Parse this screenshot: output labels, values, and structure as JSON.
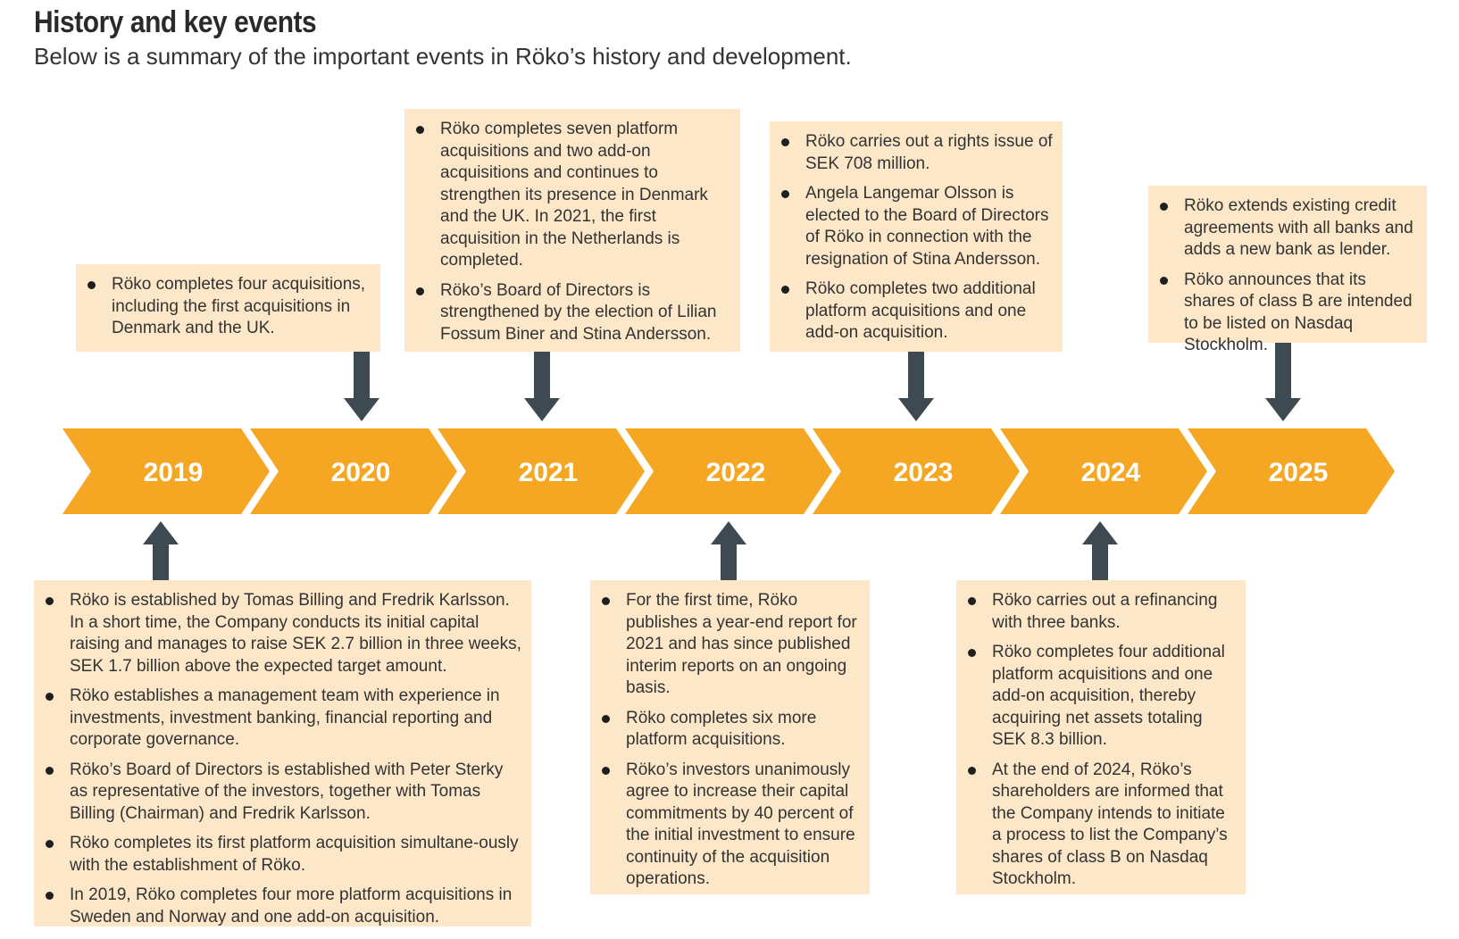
{
  "header": {
    "title": "History and key events",
    "subtitle": "Below is a summary of the important events in Röko’s history and development."
  },
  "colors": {
    "chevron": "#f5a623",
    "box": "#fde7c9",
    "arrow": "#3d4a52",
    "year_text": "#ffffff"
  },
  "timeline": {
    "years": [
      "2019",
      "2020",
      "2021",
      "2022",
      "2023",
      "2024",
      "2025"
    ]
  },
  "events_top": [
    {
      "year": "2020",
      "bullets": [
        "Röko completes four acquisitions, including the first acquisitions in Denmark and the UK."
      ]
    },
    {
      "year": "2021",
      "bullets": [
        "Röko completes seven platform acquisitions and two add-on acquisitions and continues to strengthen its presence in Denmark and the UK. In 2021, the first acquisition in the Netherlands is completed.",
        "Röko’s Board of Directors is strengthened by the election of Lilian Fossum Biner and Stina Andersson."
      ]
    },
    {
      "year": "2023",
      "bullets": [
        "Röko carries out a rights issue of SEK 708 million.",
        "Angela Langemar Olsson is elected to the Board of Directors of Röko in connection with the resignation of Stina Andersson.",
        "Röko completes two additional platform acquisitions and one add-on acquisition."
      ]
    },
    {
      "year": "2025",
      "bullets": [
        "Röko extends existing credit agreements with all banks and adds a new bank as lender.",
        "Röko announces that its shares of class B are intended to be listed on Nasdaq Stockholm."
      ]
    }
  ],
  "events_bottom": [
    {
      "year": "2019",
      "bullets": [
        "Röko is established by Tomas Billing and Fredrik Karlsson. In a short time, the Company conducts its initial capital raising and manages to raise SEK 2.7 billion in three weeks, SEK 1.7 billion above the expected target amount.",
        "Röko establishes a management team with experience in investments, investment banking, financial reporting and corporate governance.",
        "Röko’s Board of Directors is established with Peter Sterky as representative of the investors, together with Tomas Billing (Chairman) and Fredrik Karlsson.",
        "Röko completes its first platform acquisition simultane-ously with the establishment of Röko.",
        "In 2019, Röko completes four more platform acquisitions in Sweden and Norway and one add-on acquisition."
      ]
    },
    {
      "year": "2022",
      "bullets": [
        "For the first time, Röko publishes a year-end report for 2021 and has since published interim reports on an ongoing basis.",
        "Röko completes six more platform acquisitions.",
        "Röko’s investors unanimously agree to increase their capital commitments by 40 percent of the initial investment to ensure continuity of the acquisition operations."
      ]
    },
    {
      "year": "2024",
      "bullets": [
        "Röko carries out a refinancing with three banks.",
        "Röko completes four additional platform acquisitions and one add-on acquisition, thereby acquiring net assets totaling SEK 8.3 billion.",
        "At the end of 2024, Röko’s shareholders are informed that the Company intends to initiate a process to list the Company’s shares of class B on Nasdaq Stockholm."
      ]
    }
  ]
}
